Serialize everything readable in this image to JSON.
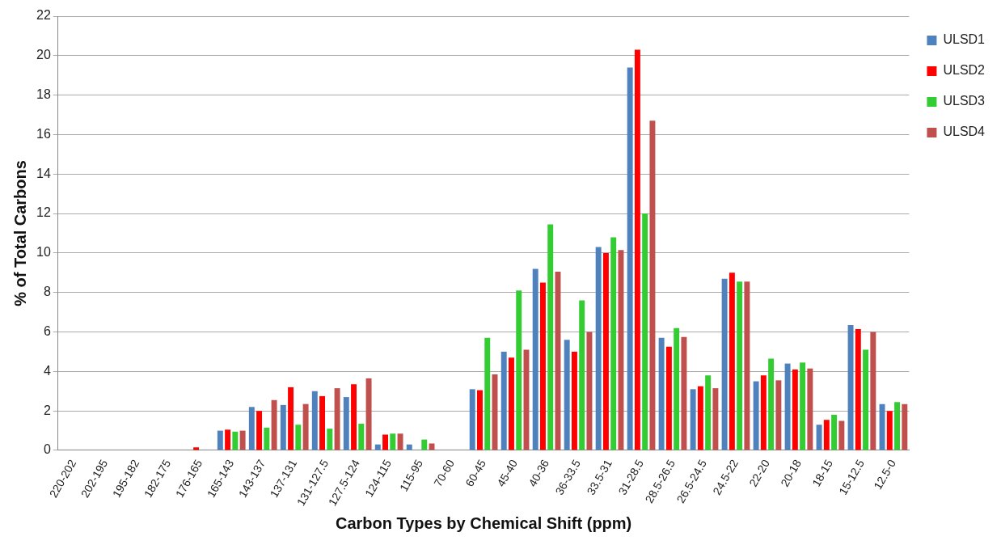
{
  "chart_data": {
    "type": "bar",
    "xlabel": "Carbon Types by Chemical Shift (ppm)",
    "ylabel": "% of Total Carbons",
    "categories": [
      "220-202",
      "202-195",
      "195-182",
      "182-175",
      "176-165",
      "165-143",
      "143-137",
      "137-131",
      "131-127.5",
      "127.5-124",
      "124-115",
      "115-95",
      "70-60",
      "60-45",
      "45-40",
      "40-36",
      "36-33.5",
      "33.5-31",
      "31-28.5",
      "28.5-26.5",
      "26.5-24.5",
      "24.5-22",
      "22-20",
      "20-18",
      "18-15",
      "15-12.5",
      "12.5-0"
    ],
    "series": [
      {
        "name": "ULSD1",
        "color": "#4f81bd",
        "values": [
          0,
          0,
          0,
          0,
          0,
          1.0,
          2.2,
          2.3,
          3.0,
          2.7,
          0.3,
          0.3,
          0,
          3.1,
          5.0,
          9.2,
          5.6,
          10.3,
          19.4,
          5.7,
          3.1,
          8.7,
          3.5,
          4.4,
          1.3,
          6.35,
          2.35
        ]
      },
      {
        "name": "ULSD2",
        "color": "#ff0000",
        "values": [
          0,
          0,
          0,
          0,
          0.15,
          1.05,
          2.0,
          3.2,
          2.75,
          3.35,
          0.8,
          0,
          0,
          3.05,
          4.7,
          8.5,
          5.0,
          10.0,
          20.3,
          5.25,
          3.25,
          9.0,
          3.8,
          4.1,
          1.55,
          6.15,
          2.0
        ]
      },
      {
        "name": "ULSD3",
        "color": "#33cc33",
        "values": [
          0,
          0,
          0,
          0,
          0,
          0.95,
          1.15,
          1.3,
          1.1,
          1.35,
          0.85,
          0.55,
          0,
          5.7,
          8.1,
          11.45,
          7.6,
          10.8,
          12.0,
          6.2,
          3.8,
          8.55,
          4.65,
          4.45,
          1.8,
          5.1,
          2.45
        ]
      },
      {
        "name": "ULSD4",
        "color": "#c0504d",
        "values": [
          0,
          0,
          0,
          0,
          0,
          1.0,
          2.55,
          2.35,
          3.15,
          3.65,
          0.85,
          0.35,
          0,
          3.85,
          5.1,
          9.05,
          6.0,
          10.15,
          16.7,
          5.75,
          3.15,
          8.55,
          3.55,
          4.15,
          1.5,
          6.0,
          2.35
        ]
      }
    ],
    "ylim": [
      0,
      22
    ],
    "yticks": [
      0,
      2,
      4,
      6,
      8,
      10,
      12,
      14,
      16,
      18,
      20,
      22
    ],
    "grid": "y",
    "legend": "top right"
  }
}
